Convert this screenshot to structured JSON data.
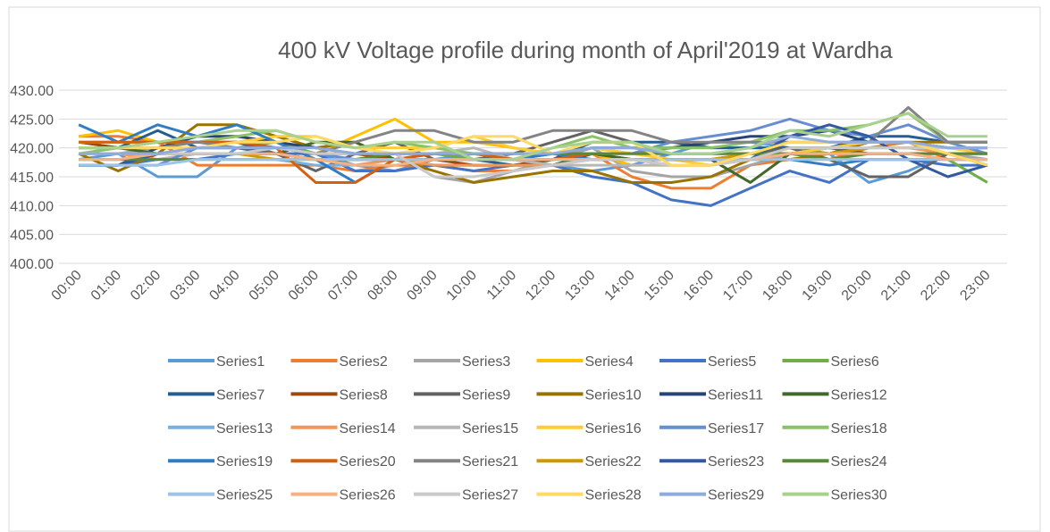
{
  "chart_data": {
    "type": "line",
    "title": "400 kV Voltage profile during month of April'2019 at Wardha",
    "categories": [
      "00:00",
      "01:00",
      "02:00",
      "03:00",
      "04:00",
      "05:00",
      "06:00",
      "07:00",
      "08:00",
      "09:00",
      "10:00",
      "11:00",
      "12:00",
      "13:00",
      "14:00",
      "15:00",
      "16:00",
      "17:00",
      "18:00",
      "19:00",
      "20:00",
      "21:00",
      "22:00",
      "23:00"
    ],
    "ylim": [
      400,
      430
    ],
    "yticks": [
      {
        "value": 400,
        "label": "400.00"
      },
      {
        "value": 405,
        "label": "405.00"
      },
      {
        "value": 410,
        "label": "410.00"
      },
      {
        "value": 415,
        "label": "415.00"
      },
      {
        "value": 420,
        "label": "420.00"
      },
      {
        "value": 425,
        "label": "425.00"
      },
      {
        "value": 430,
        "label": "430.00"
      }
    ],
    "grid": true,
    "legend": "bottom",
    "series": [
      {
        "name": "Series1",
        "color": "#5B9BD5",
        "values": [
          418,
          419,
          415,
          415,
          420,
          421,
          419,
          417,
          416,
          418,
          419,
          418,
          417,
          416,
          417,
          419,
          421,
          421,
          420,
          419,
          414,
          416,
          419,
          419
        ]
      },
      {
        "name": "Series2",
        "color": "#ED7D31",
        "values": [
          422,
          422,
          421,
          417,
          417,
          417,
          417,
          416,
          417,
          417,
          416,
          416,
          417,
          419,
          415,
          413,
          413,
          417,
          418,
          418,
          420,
          421,
          418,
          418
        ]
      },
      {
        "name": "Series3",
        "color": "#A5A5A5",
        "values": [
          419,
          419,
          420,
          420,
          420,
          419,
          418,
          418,
          419,
          415,
          414,
          416,
          418,
          420,
          416,
          415,
          415,
          417,
          419,
          419,
          421,
          421,
          419,
          418
        ]
      },
      {
        "name": "Series4",
        "color": "#FFC000",
        "values": [
          422,
          423,
          421,
          421,
          422,
          421,
          419,
          422,
          425,
          421,
          421,
          420,
          419,
          419,
          417,
          417,
          417,
          418,
          420,
          420,
          421,
          421,
          420,
          420
        ]
      },
      {
        "name": "Series5",
        "color": "#4472C4",
        "values": [
          417,
          417,
          418,
          418,
          419,
          419,
          419,
          416,
          416,
          417,
          416,
          417,
          417,
          415,
          414,
          411,
          410,
          413,
          416,
          414,
          418,
          418,
          417,
          417
        ]
      },
      {
        "name": "Series6",
        "color": "#70AD47",
        "values": [
          420,
          420,
          420,
          421,
          421,
          421,
          419,
          419,
          419,
          419,
          418,
          418,
          419,
          420,
          419,
          420,
          420,
          420,
          420,
          419,
          419,
          419,
          418,
          414
        ]
      },
      {
        "name": "Series7",
        "color": "#255E91",
        "values": [
          421,
          420,
          423,
          420,
          420,
          419,
          418,
          418,
          418,
          418,
          418,
          417,
          418,
          421,
          421,
          421,
          420,
          420,
          420,
          420,
          422,
          422,
          421,
          421
        ]
      },
      {
        "name": "Series8",
        "color": "#9E480E",
        "values": [
          421,
          420,
          421,
          421,
          421,
          420,
          419,
          419,
          418,
          418,
          417,
          417,
          418,
          419,
          418,
          418,
          418,
          419,
          420,
          420,
          421,
          421,
          420,
          420
        ]
      },
      {
        "name": "Series9",
        "color": "#636363",
        "values": [
          421,
          421,
          421,
          421,
          421,
          419,
          416,
          419,
          421,
          418,
          418,
          419,
          421,
          423,
          421,
          419,
          419,
          419,
          420,
          418,
          415,
          415,
          419,
          419
        ]
      },
      {
        "name": "Series10",
        "color": "#997300",
        "values": [
          419,
          416,
          419,
          424,
          424,
          422,
          420,
          421,
          418,
          416,
          414,
          415,
          416,
          416,
          414,
          414,
          415,
          418,
          418,
          419,
          421,
          421,
          421,
          421
        ]
      },
      {
        "name": "Series11",
        "color": "#264478",
        "values": [
          417,
          417,
          420,
          422,
          422,
          421,
          420,
          419,
          419,
          419,
          419,
          419,
          419,
          420,
          420,
          420,
          421,
          422,
          422,
          423,
          421,
          421,
          420,
          420
        ]
      },
      {
        "name": "Series12",
        "color": "#43682B",
        "values": [
          420,
          420,
          419,
          419,
          419,
          419,
          421,
          421,
          418,
          417,
          417,
          417,
          417,
          419,
          418,
          418,
          418,
          414,
          419,
          420,
          419,
          419,
          419,
          417
        ]
      },
      {
        "name": "Series13",
        "color": "#7CAFDD",
        "values": [
          418,
          418,
          418,
          418,
          418,
          418,
          417,
          417,
          418,
          418,
          418,
          418,
          418,
          418,
          418,
          418,
          418,
          418,
          418,
          418,
          418,
          418,
          418,
          418
        ]
      },
      {
        "name": "Series14",
        "color": "#F1975A",
        "values": [
          419,
          419,
          418,
          419,
          419,
          419,
          418,
          417,
          418,
          417,
          417,
          417,
          417,
          418,
          418,
          417,
          417,
          418,
          419,
          419,
          420,
          420,
          419,
          419
        ]
      },
      {
        "name": "Series15",
        "color": "#B7B7B7",
        "values": [
          418,
          418,
          418,
          419,
          419,
          419,
          418,
          418,
          418,
          419,
          420,
          418,
          417,
          417,
          417,
          417,
          417,
          418,
          419,
          419,
          419,
          419,
          419,
          419
        ]
      },
      {
        "name": "Series16",
        "color": "#FFCD33",
        "values": [
          421,
          421,
          421,
          421,
          421,
          422,
          422,
          420,
          420,
          420,
          422,
          420,
          419,
          420,
          419,
          418,
          417,
          418,
          419,
          420,
          421,
          421,
          420,
          419
        ]
      },
      {
        "name": "Series17",
        "color": "#698ED0",
        "values": [
          417,
          417,
          417,
          420,
          420,
          420,
          419,
          418,
          418,
          419,
          419,
          418,
          419,
          419,
          419,
          421,
          422,
          423,
          425,
          423,
          422,
          424,
          421,
          419
        ]
      },
      {
        "name": "Series18",
        "color": "#8CC168",
        "values": [
          419,
          420,
          421,
          421,
          422,
          423,
          421,
          420,
          421,
          420,
          419,
          418,
          420,
          422,
          420,
          420,
          420,
          421,
          423,
          423,
          424,
          426,
          421,
          421
        ]
      },
      {
        "name": "Series19",
        "color": "#327DC2",
        "values": [
          424,
          421,
          424,
          422,
          424,
          421,
          418,
          414,
          418,
          418,
          418,
          418,
          419,
          418,
          418,
          418,
          418,
          418,
          418,
          417,
          418,
          418,
          418,
          418
        ]
      },
      {
        "name": "Series20",
        "color": "#D26012",
        "values": [
          421,
          421,
          421,
          421,
          421,
          420,
          414,
          414,
          418,
          419,
          419,
          418,
          418,
          419,
          419,
          419,
          419,
          419,
          419,
          419,
          419,
          419,
          419,
          419
        ]
      },
      {
        "name": "Series21",
        "color": "#848484",
        "values": [
          420,
          420,
          420,
          421,
          420,
          420,
          419,
          421,
          423,
          423,
          421,
          421,
          423,
          423,
          423,
          421,
          421,
          421,
          421,
          421,
          421,
          427,
          421,
          421
        ]
      },
      {
        "name": "Series22",
        "color": "#CC9A00",
        "values": [
          419,
          419,
          419,
          419,
          419,
          418,
          418,
          418,
          418,
          418,
          418,
          418,
          418,
          418,
          418,
          418,
          418,
          419,
          419,
          419,
          420,
          420,
          420,
          420
        ]
      },
      {
        "name": "Series23",
        "color": "#335AA1",
        "values": [
          417,
          417,
          419,
          419,
          419,
          419,
          418,
          418,
          418,
          418,
          418,
          418,
          418,
          418,
          418,
          418,
          418,
          418,
          422,
          424,
          422,
          418,
          415,
          417
        ]
      },
      {
        "name": "Series24",
        "color": "#5A8A39",
        "values": [
          418,
          418,
          418,
          418,
          418,
          418,
          418,
          418,
          419,
          419,
          419,
          419,
          419,
          419,
          419,
          419,
          419,
          419,
          419,
          418,
          419,
          419,
          419,
          419
        ]
      },
      {
        "name": "Series25",
        "color": "#9DC3E6",
        "values": [
          417,
          417,
          417,
          418,
          418,
          418,
          418,
          418,
          418,
          418,
          418,
          418,
          418,
          418,
          418,
          418,
          418,
          418,
          418,
          418,
          418,
          418,
          418,
          418
        ]
      },
      {
        "name": "Series26",
        "color": "#F4B183",
        "values": [
          418,
          418,
          419,
          419,
          419,
          419,
          418,
          417,
          417,
          418,
          418,
          418,
          418,
          418,
          418,
          417,
          417,
          418,
          419,
          419,
          419,
          419,
          418,
          418
        ]
      },
      {
        "name": "Series27",
        "color": "#C9C9C9",
        "values": [
          419,
          419,
          419,
          419,
          419,
          420,
          419,
          419,
          419,
          415,
          415,
          416,
          417,
          418,
          418,
          417,
          417,
          418,
          420,
          420,
          420,
          420,
          420,
          420
        ]
      },
      {
        "name": "Series28",
        "color": "#FFD966",
        "values": [
          420,
          420,
          420,
          420,
          421,
          421,
          422,
          420,
          419,
          420,
          422,
          422,
          419,
          421,
          421,
          417,
          417,
          419,
          421,
          421,
          421,
          421,
          419,
          417
        ]
      },
      {
        "name": "Series29",
        "color": "#8FAADC",
        "values": [
          419,
          419,
          419,
          420,
          420,
          420,
          420,
          419,
          419,
          419,
          419,
          419,
          419,
          420,
          420,
          419,
          419,
          420,
          422,
          421,
          421,
          421,
          420,
          420
        ]
      },
      {
        "name": "Series30",
        "color": "#A9D18E",
        "values": [
          420,
          420,
          421,
          422,
          423,
          423,
          421,
          420,
          421,
          421,
          418,
          418,
          420,
          421,
          421,
          419,
          419,
          420,
          423,
          422,
          424,
          426,
          422,
          422
        ]
      }
    ]
  }
}
